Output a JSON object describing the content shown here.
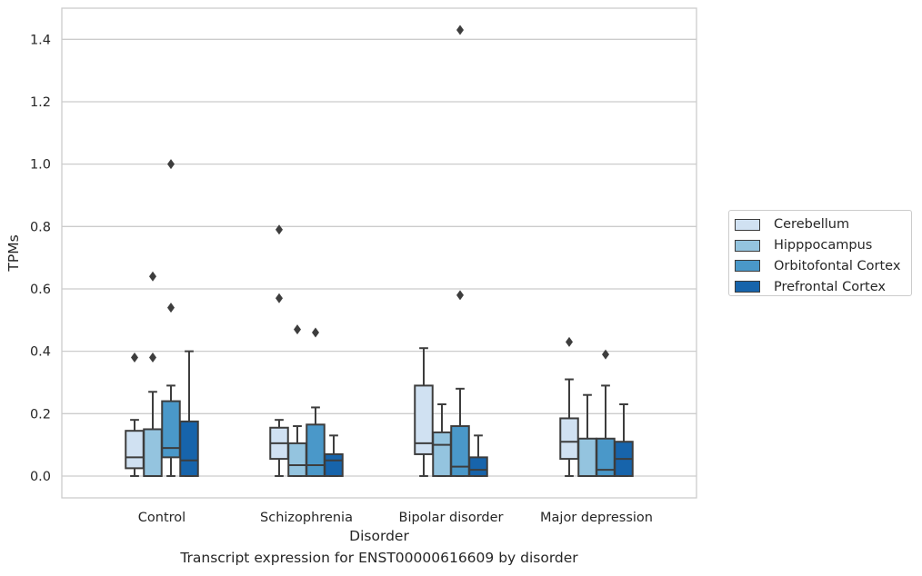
{
  "caption": "Transcript expression for ENST00000616609 by disorder",
  "chart_data": {
    "type": "box",
    "title": "",
    "xlabel": "Disorder",
    "ylabel": "TPMs",
    "ylim": [
      -0.07,
      1.5
    ],
    "yticks": [
      "0.0",
      "0.2",
      "0.4",
      "0.6",
      "0.8",
      "1.0",
      "1.2",
      "1.4"
    ],
    "categories": [
      "Control",
      "Schizophrenia",
      "Bipolar disorder",
      "Major depression"
    ],
    "grid": "horizontal",
    "legend_position": "right",
    "series": [
      {
        "name": "Cerebellum",
        "color": "#d0e1f2",
        "boxes": [
          {
            "whisker_low": 0.0,
            "q1": 0.025,
            "median": 0.06,
            "q3": 0.145,
            "whisker_high": 0.18,
            "outliers": [
              0.38
            ]
          },
          {
            "whisker_low": 0.0,
            "q1": 0.055,
            "median": 0.105,
            "q3": 0.155,
            "whisker_high": 0.18,
            "outliers": [
              0.57,
              0.79
            ]
          },
          {
            "whisker_low": 0.0,
            "q1": 0.07,
            "median": 0.105,
            "q3": 0.29,
            "whisker_high": 0.41,
            "outliers": []
          },
          {
            "whisker_low": 0.0,
            "q1": 0.055,
            "median": 0.11,
            "q3": 0.185,
            "whisker_high": 0.31,
            "outliers": [
              0.43
            ]
          }
        ]
      },
      {
        "name": "Hipppocampus",
        "color": "#94c4df",
        "boxes": [
          {
            "whisker_low": 0.0,
            "q1": 0.0,
            "median": 0.0,
            "q3": 0.15,
            "whisker_high": 0.27,
            "outliers": [
              0.38,
              0.64
            ]
          },
          {
            "whisker_low": 0.0,
            "q1": 0.0,
            "median": 0.035,
            "q3": 0.105,
            "whisker_high": 0.16,
            "outliers": [
              0.47
            ]
          },
          {
            "whisker_low": 0.0,
            "q1": 0.0,
            "median": 0.1,
            "q3": 0.14,
            "whisker_high": 0.23,
            "outliers": []
          },
          {
            "whisker_low": 0.0,
            "q1": 0.0,
            "median": 0.0,
            "q3": 0.12,
            "whisker_high": 0.26,
            "outliers": []
          }
        ]
      },
      {
        "name": "Orbitofontal Cortex",
        "color": "#4a98c9",
        "boxes": [
          {
            "whisker_low": 0.0,
            "q1": 0.06,
            "median": 0.09,
            "q3": 0.24,
            "whisker_high": 0.29,
            "outliers": [
              0.54,
              1.0
            ]
          },
          {
            "whisker_low": 0.0,
            "q1": 0.0,
            "median": 0.035,
            "q3": 0.165,
            "whisker_high": 0.22,
            "outliers": [
              0.46
            ]
          },
          {
            "whisker_low": 0.0,
            "q1": 0.0,
            "median": 0.03,
            "q3": 0.16,
            "whisker_high": 0.28,
            "outliers": [
              0.58,
              1.43
            ]
          },
          {
            "whisker_low": 0.0,
            "q1": 0.0,
            "median": 0.02,
            "q3": 0.12,
            "whisker_high": 0.29,
            "outliers": [
              0.39
            ]
          }
        ]
      },
      {
        "name": "Prefrontal Cortex",
        "color": "#1764ab",
        "boxes": [
          {
            "whisker_low": 0.0,
            "q1": 0.0,
            "median": 0.05,
            "q3": 0.175,
            "whisker_high": 0.4,
            "outliers": []
          },
          {
            "whisker_low": 0.0,
            "q1": 0.0,
            "median": 0.05,
            "q3": 0.07,
            "whisker_high": 0.13,
            "outliers": []
          },
          {
            "whisker_low": 0.0,
            "q1": 0.0,
            "median": 0.02,
            "q3": 0.06,
            "whisker_high": 0.13,
            "outliers": []
          },
          {
            "whisker_low": 0.0,
            "q1": 0.0,
            "median": 0.055,
            "q3": 0.11,
            "whisker_high": 0.23,
            "outliers": []
          }
        ]
      }
    ]
  }
}
